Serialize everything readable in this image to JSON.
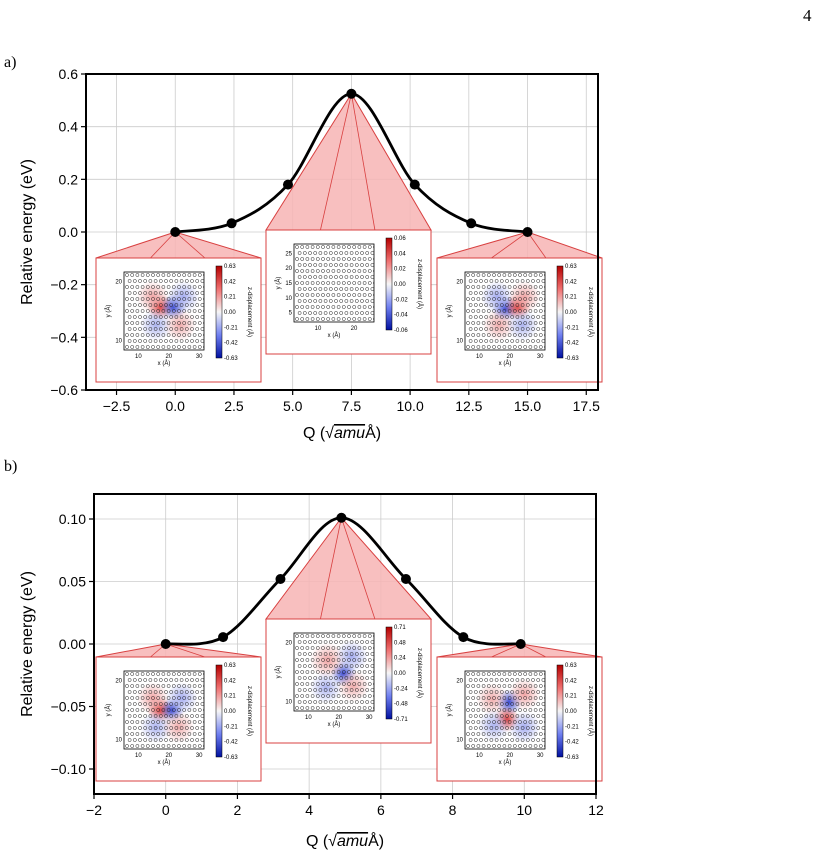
{
  "page": {
    "number": "4"
  },
  "panels": [
    {
      "tag": "a)",
      "chart_data": {
        "type": "line",
        "xlabel_prefix": "Q (",
        "xlabel_root": "√",
        "xlabel_unit": "amu",
        "xlabel_suffix": "Å)",
        "ylabel": "Relative energy (eV)",
        "xlim": [
          -3.8,
          18.0
        ],
        "ylim": [
          -0.6,
          0.6
        ],
        "xticks": [
          -2.5,
          0.0,
          2.5,
          5.0,
          7.5,
          10.0,
          12.5,
          15.0,
          17.5
        ],
        "yticks": [
          -0.6,
          -0.4,
          -0.2,
          0.0,
          0.2,
          0.4,
          0.6
        ],
        "xtick_labels": [
          "−2.5",
          "0.0",
          "2.5",
          "5.0",
          "7.5",
          "10.0",
          "12.5",
          "15.0",
          "17.5"
        ],
        "ytick_labels": [
          "−0.6",
          "−0.4",
          "−0.2",
          "0.0",
          "0.2",
          "0.4",
          "0.6"
        ],
        "grid": true,
        "points": {
          "x": [
            0.0,
            2.4,
            4.8,
            7.5,
            10.2,
            12.6,
            15.0
          ],
          "y": [
            0.0,
            0.033,
            0.18,
            0.525,
            0.18,
            0.033,
            0.0
          ]
        },
        "insets": [
          {
            "anchor_x": 0.0,
            "anchor_y": 0.0,
            "colorbar_ticks": [
              "0.63",
              "0.42",
              "0.21",
              "0.00",
              "-0.21",
              "-0.42",
              "-0.63"
            ],
            "colorbar_label": "z-displacement (Å)",
            "x_ticks": [
              "10",
              "20",
              "30"
            ],
            "y_ticks": [
              "20",
              "10"
            ],
            "xlabel": "x (Å)",
            "ylabel": "y (Å)",
            "blobs": [
              {
                "u": 0.45,
                "v": 0.45,
                "color": "#d83030",
                "r": 0.16
              },
              {
                "u": 0.62,
                "v": 0.45,
                "color": "#3040d0",
                "r": 0.16
              },
              {
                "u": 0.36,
                "v": 0.32,
                "color": "#f0a0a0",
                "r": 0.2
              },
              {
                "u": 0.74,
                "v": 0.32,
                "color": "#a0a8f0",
                "r": 0.2
              },
              {
                "u": 0.4,
                "v": 0.68,
                "color": "#a8b0f0",
                "r": 0.2
              },
              {
                "u": 0.7,
                "v": 0.68,
                "color": "#f0a8a8",
                "r": 0.2
              }
            ]
          },
          {
            "anchor_x": 7.5,
            "anchor_y": 0.525,
            "colorbar_ticks": [
              "0.06",
              "0.04",
              "0.02",
              "0.00",
              "-0.02",
              "-0.04",
              "-0.06"
            ],
            "colorbar_label": "z-displacement (Å)",
            "x_ticks": [
              "10",
              "20"
            ],
            "y_ticks": [
              "25",
              "20",
              "15",
              "10",
              "5"
            ],
            "xlabel": "x (Å)",
            "ylabel": "y (Å)",
            "blobs": []
          },
          {
            "anchor_x": 15.0,
            "anchor_y": 0.0,
            "colorbar_ticks": [
              "0.63",
              "0.42",
              "0.21",
              "0.00",
              "-0.21",
              "-0.42",
              "-0.63"
            ],
            "colorbar_label": "z-displacement (Å)",
            "x_ticks": [
              "10",
              "20",
              "30"
            ],
            "y_ticks": [
              "20",
              "10"
            ],
            "xlabel": "x (Å)",
            "ylabel": "y (Å)",
            "blobs": [
              {
                "u": 0.5,
                "v": 0.47,
                "color": "#3040d0",
                "r": 0.16
              },
              {
                "u": 0.66,
                "v": 0.45,
                "color": "#d83030",
                "r": 0.16
              },
              {
                "u": 0.4,
                "v": 0.32,
                "color": "#a0a8f0",
                "r": 0.2
              },
              {
                "u": 0.74,
                "v": 0.32,
                "color": "#f0a0a0",
                "r": 0.2
              },
              {
                "u": 0.42,
                "v": 0.68,
                "color": "#f0a8a8",
                "r": 0.2
              },
              {
                "u": 0.72,
                "v": 0.68,
                "color": "#a8b0f0",
                "r": 0.2
              }
            ]
          }
        ]
      }
    },
    {
      "tag": "b)",
      "chart_data": {
        "type": "line",
        "xlabel_prefix": "Q (",
        "xlabel_root": "√",
        "xlabel_unit": "amu",
        "xlabel_suffix": "Å)",
        "ylabel": "Relative energy (eV)",
        "xlim": [
          -2.0,
          12.0
        ],
        "ylim": [
          -0.12,
          0.12
        ],
        "xticks": [
          -2,
          0,
          2,
          4,
          6,
          8,
          10,
          12
        ],
        "yticks": [
          -0.1,
          -0.05,
          0.0,
          0.05,
          0.1
        ],
        "xtick_labels": [
          "−2",
          "0",
          "2",
          "4",
          "6",
          "8",
          "10",
          "12"
        ],
        "ytick_labels": [
          "−0.10",
          "−0.05",
          "0.00",
          "0.05",
          "0.10"
        ],
        "grid": true,
        "points": {
          "x": [
            0.0,
            1.6,
            3.2,
            4.9,
            6.7,
            8.3,
            9.9
          ],
          "y": [
            0.0,
            0.0055,
            0.052,
            0.101,
            0.052,
            0.0055,
            0.0
          ]
        },
        "insets": [
          {
            "anchor_x": 0.0,
            "anchor_y": 0.0,
            "colorbar_ticks": [
              "0.63",
              "0.42",
              "0.21",
              "0.00",
              "-0.21",
              "-0.42",
              "-0.63"
            ],
            "colorbar_label": "z-displacement (Å)",
            "x_ticks": [
              "10",
              "20",
              "30"
            ],
            "y_ticks": [
              "20",
              "10"
            ],
            "xlabel": "x (Å)",
            "ylabel": "y (Å)",
            "blobs": [
              {
                "u": 0.45,
                "v": 0.5,
                "color": "#d83030",
                "r": 0.16
              },
              {
                "u": 0.6,
                "v": 0.5,
                "color": "#3040d0",
                "r": 0.15
              },
              {
                "u": 0.36,
                "v": 0.35,
                "color": "#f0a0a0",
                "r": 0.2
              },
              {
                "u": 0.72,
                "v": 0.35,
                "color": "#a0a8f0",
                "r": 0.2
              },
              {
                "u": 0.4,
                "v": 0.72,
                "color": "#a8b0f0",
                "r": 0.2
              },
              {
                "u": 0.68,
                "v": 0.72,
                "color": "#f0a8a8",
                "r": 0.2
              }
            ]
          },
          {
            "anchor_x": 4.9,
            "anchor_y": 0.101,
            "colorbar_ticks": [
              "0.71",
              "0.48",
              "0.24",
              "0.00",
              "-0.24",
              "-0.48",
              "-0.71"
            ],
            "colorbar_label": "z-displacement (Å)",
            "x_ticks": [
              "10",
              "20",
              "30"
            ],
            "y_ticks": [
              "20",
              "10"
            ],
            "xlabel": "x (Å)",
            "ylabel": "y (Å)",
            "blobs": [
              {
                "u": 0.62,
                "v": 0.52,
                "color": "#3040d0",
                "r": 0.16
              },
              {
                "u": 0.42,
                "v": 0.35,
                "color": "#f0a0a0",
                "r": 0.22
              },
              {
                "u": 0.72,
                "v": 0.3,
                "color": "#a0a8f0",
                "r": 0.2
              },
              {
                "u": 0.4,
                "v": 0.7,
                "color": "#a8b0f0",
                "r": 0.2
              },
              {
                "u": 0.74,
                "v": 0.68,
                "color": "#f0a8a8",
                "r": 0.2
              }
            ]
          },
          {
            "anchor_x": 9.9,
            "anchor_y": 0.0,
            "colorbar_ticks": [
              "0.63",
              "0.42",
              "0.21",
              "0.00",
              "-0.21",
              "-0.42",
              "-0.63"
            ],
            "colorbar_label": "z-displacement (Å)",
            "x_ticks": [
              "10",
              "20",
              "30"
            ],
            "y_ticks": [
              "20",
              "10"
            ],
            "xlabel": "x (Å)",
            "ylabel": "y (Å)",
            "blobs": [
              {
                "u": 0.55,
                "v": 0.4,
                "color": "#3040d0",
                "r": 0.16
              },
              {
                "u": 0.52,
                "v": 0.62,
                "color": "#d83030",
                "r": 0.16
              },
              {
                "u": 0.34,
                "v": 0.36,
                "color": "#f0a8a8",
                "r": 0.2
              },
              {
                "u": 0.74,
                "v": 0.3,
                "color": "#f0a0a0",
                "r": 0.2
              },
              {
                "u": 0.36,
                "v": 0.7,
                "color": "#a8b0f0",
                "r": 0.2
              },
              {
                "u": 0.74,
                "v": 0.72,
                "color": "#a0a8f0",
                "r": 0.2
              }
            ]
          }
        ]
      }
    }
  ],
  "colors": {
    "curve": "#000000",
    "marker": "#000000",
    "cone_fill": "#f7b4b4",
    "cone_line": "#d84040",
    "grid": "#cccccc"
  }
}
